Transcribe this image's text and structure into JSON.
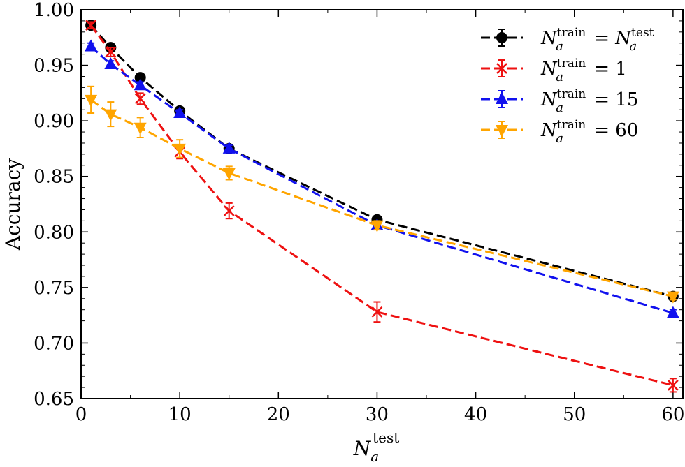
{
  "chart_data": {
    "type": "line",
    "xlabel": {
      "main": "N",
      "sub": "a",
      "sup": "test"
    },
    "ylabel": "Accuracy",
    "xlim": [
      0,
      61
    ],
    "ylim": [
      0.65,
      1.0
    ],
    "x_ticks": [
      0,
      10,
      20,
      30,
      40,
      50,
      60
    ],
    "y_ticks": [
      0.65,
      0.7,
      0.75,
      0.8,
      0.85,
      0.9,
      0.95,
      1.0
    ],
    "x_tick_labels": [
      "0",
      "10",
      "20",
      "30",
      "40",
      "50",
      "60"
    ],
    "y_tick_labels": [
      "0.65",
      "0.70",
      "0.75",
      "0.80",
      "0.85",
      "0.90",
      "0.95",
      "1.00"
    ],
    "x": [
      1,
      3,
      6,
      10,
      15,
      30,
      60
    ],
    "legend_position": "top-right",
    "series": [
      {
        "id": "match",
        "legend": {
          "lhs_main": "N",
          "lhs_sub": "a",
          "lhs_sup": "train",
          "op": " = ",
          "rhs_main": "N",
          "rhs_sub": "a",
          "rhs_sup": "test"
        },
        "color": "#000000",
        "marker": "circle",
        "values": [
          0.986,
          0.966,
          0.939,
          0.909,
          0.875,
          0.811,
          0.742
        ],
        "err": [
          0.003,
          0.003,
          0.003,
          0.003,
          0.003,
          0.003,
          0.003
        ]
      },
      {
        "id": "train1",
        "legend": {
          "lhs_main": "N",
          "lhs_sub": "a",
          "lhs_sup": "train",
          "op": " = ",
          "rhs_text": "1"
        },
        "color": "#ee1111",
        "marker": "x",
        "values": [
          0.986,
          0.962,
          0.92,
          0.872,
          0.819,
          0.728,
          0.662
        ],
        "err": [
          0.003,
          0.004,
          0.005,
          0.006,
          0.007,
          0.009,
          0.006
        ]
      },
      {
        "id": "train15",
        "legend": {
          "lhs_main": "N",
          "lhs_sub": "a",
          "lhs_sup": "train",
          "op": " = ",
          "rhs_text": "15"
        },
        "color": "#1111ee",
        "marker": "triangle-up",
        "values": [
          0.967,
          0.951,
          0.932,
          0.907,
          0.875,
          0.806,
          0.727
        ],
        "err": [
          0.003,
          0.003,
          0.003,
          0.003,
          0.003,
          0.003,
          0.003
        ]
      },
      {
        "id": "train60",
        "legend": {
          "lhs_main": "N",
          "lhs_sub": "a",
          "lhs_sup": "train",
          "op": " = ",
          "rhs_text": "60"
        },
        "color": "#ffa500",
        "marker": "triangle-down",
        "values": [
          0.919,
          0.906,
          0.894,
          0.875,
          0.853,
          0.806,
          0.742
        ],
        "err": [
          0.012,
          0.011,
          0.009,
          0.008,
          0.006,
          0.004,
          0.003
        ]
      }
    ]
  }
}
